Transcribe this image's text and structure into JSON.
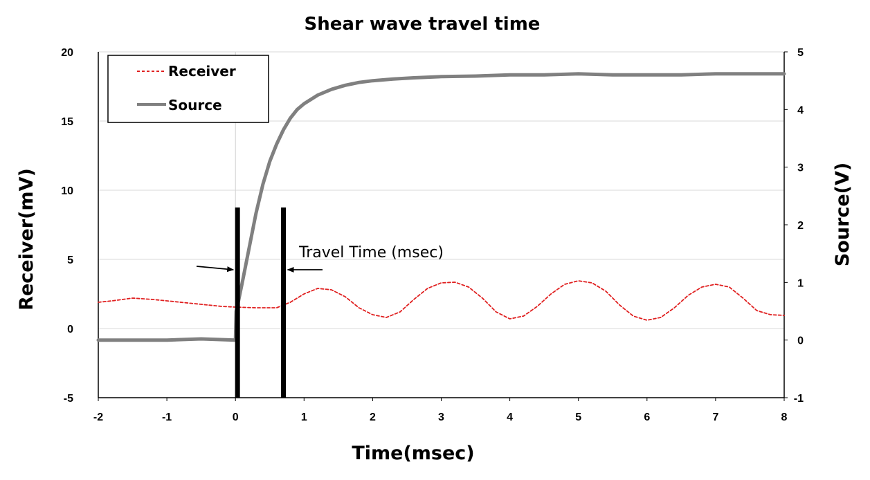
{
  "chart_data": {
    "type": "line",
    "title": "Shear wave travel time",
    "xlabel": "Time(msec)",
    "ylabel": "Receiver(mV)",
    "y2label": "Source(V)",
    "xlim": [
      -2,
      8
    ],
    "ylim": [
      -5,
      20
    ],
    "y2lim": [
      -1,
      5
    ],
    "xticks": [
      -2,
      -1,
      0,
      1,
      2,
      3,
      4,
      5,
      6,
      7,
      8
    ],
    "yticks": [
      -5,
      0,
      5,
      10,
      15,
      20
    ],
    "y2ticks": [
      -1,
      0,
      1,
      2,
      3,
      4,
      5
    ],
    "grid": "horizontal",
    "legend": {
      "position": "top-left",
      "entries": [
        "Receiver",
        "Source"
      ]
    },
    "series": [
      {
        "name": "Receiver",
        "axis": "left",
        "color": "#e02020",
        "style": "dashed",
        "x": [
          -2,
          -1.8,
          -1.5,
          -1.2,
          -1.0,
          -0.6,
          -0.2,
          0,
          0.3,
          0.6,
          0.8,
          1.0,
          1.2,
          1.4,
          1.6,
          1.8,
          2.0,
          2.2,
          2.4,
          2.6,
          2.8,
          3.0,
          3.2,
          3.4,
          3.6,
          3.8,
          4.0,
          4.2,
          4.4,
          4.6,
          4.8,
          5.0,
          5.2,
          5.4,
          5.6,
          5.8,
          6.0,
          6.2,
          6.4,
          6.6,
          6.8,
          7.0,
          7.2,
          7.4,
          7.6,
          7.8,
          8.0
        ],
        "y": [
          1.9,
          2.0,
          2.2,
          2.1,
          2.0,
          1.8,
          1.6,
          1.55,
          1.5,
          1.5,
          1.9,
          2.5,
          2.9,
          2.8,
          2.3,
          1.5,
          1.0,
          0.8,
          1.2,
          2.1,
          2.9,
          3.3,
          3.35,
          3.0,
          2.2,
          1.2,
          0.7,
          0.9,
          1.6,
          2.5,
          3.2,
          3.45,
          3.3,
          2.7,
          1.7,
          0.9,
          0.6,
          0.8,
          1.5,
          2.4,
          3.0,
          3.2,
          3.0,
          2.2,
          1.3,
          1.0,
          0.95
        ]
      },
      {
        "name": "Source",
        "axis": "right",
        "color": "#808080",
        "style": "solid",
        "x": [
          -2,
          -1,
          -0.5,
          0,
          0.01,
          0.03,
          0.1,
          0.2,
          0.3,
          0.4,
          0.5,
          0.6,
          0.7,
          0.8,
          0.9,
          1.0,
          1.2,
          1.4,
          1.6,
          1.8,
          2.0,
          2.3,
          2.6,
          3.0,
          3.5,
          4.0,
          4.5,
          5.0,
          5.5,
          6.0,
          6.5,
          7.0,
          7.5,
          8.0
        ],
        "y": [
          0,
          0,
          0.02,
          0,
          0.5,
          0.6,
          1.0,
          1.6,
          2.2,
          2.7,
          3.1,
          3.4,
          3.65,
          3.85,
          4.0,
          4.1,
          4.25,
          4.35,
          4.42,
          4.47,
          4.5,
          4.53,
          4.55,
          4.57,
          4.58,
          4.6,
          4.6,
          4.62,
          4.6,
          4.6,
          4.6,
          4.62,
          4.62,
          4.62
        ]
      }
    ],
    "markers": [
      {
        "x": 0.03,
        "y2": 2.3
      },
      {
        "x": 0.7,
        "y2": 2.3
      }
    ],
    "annotation": {
      "text": "Travel Time (msec)"
    }
  }
}
